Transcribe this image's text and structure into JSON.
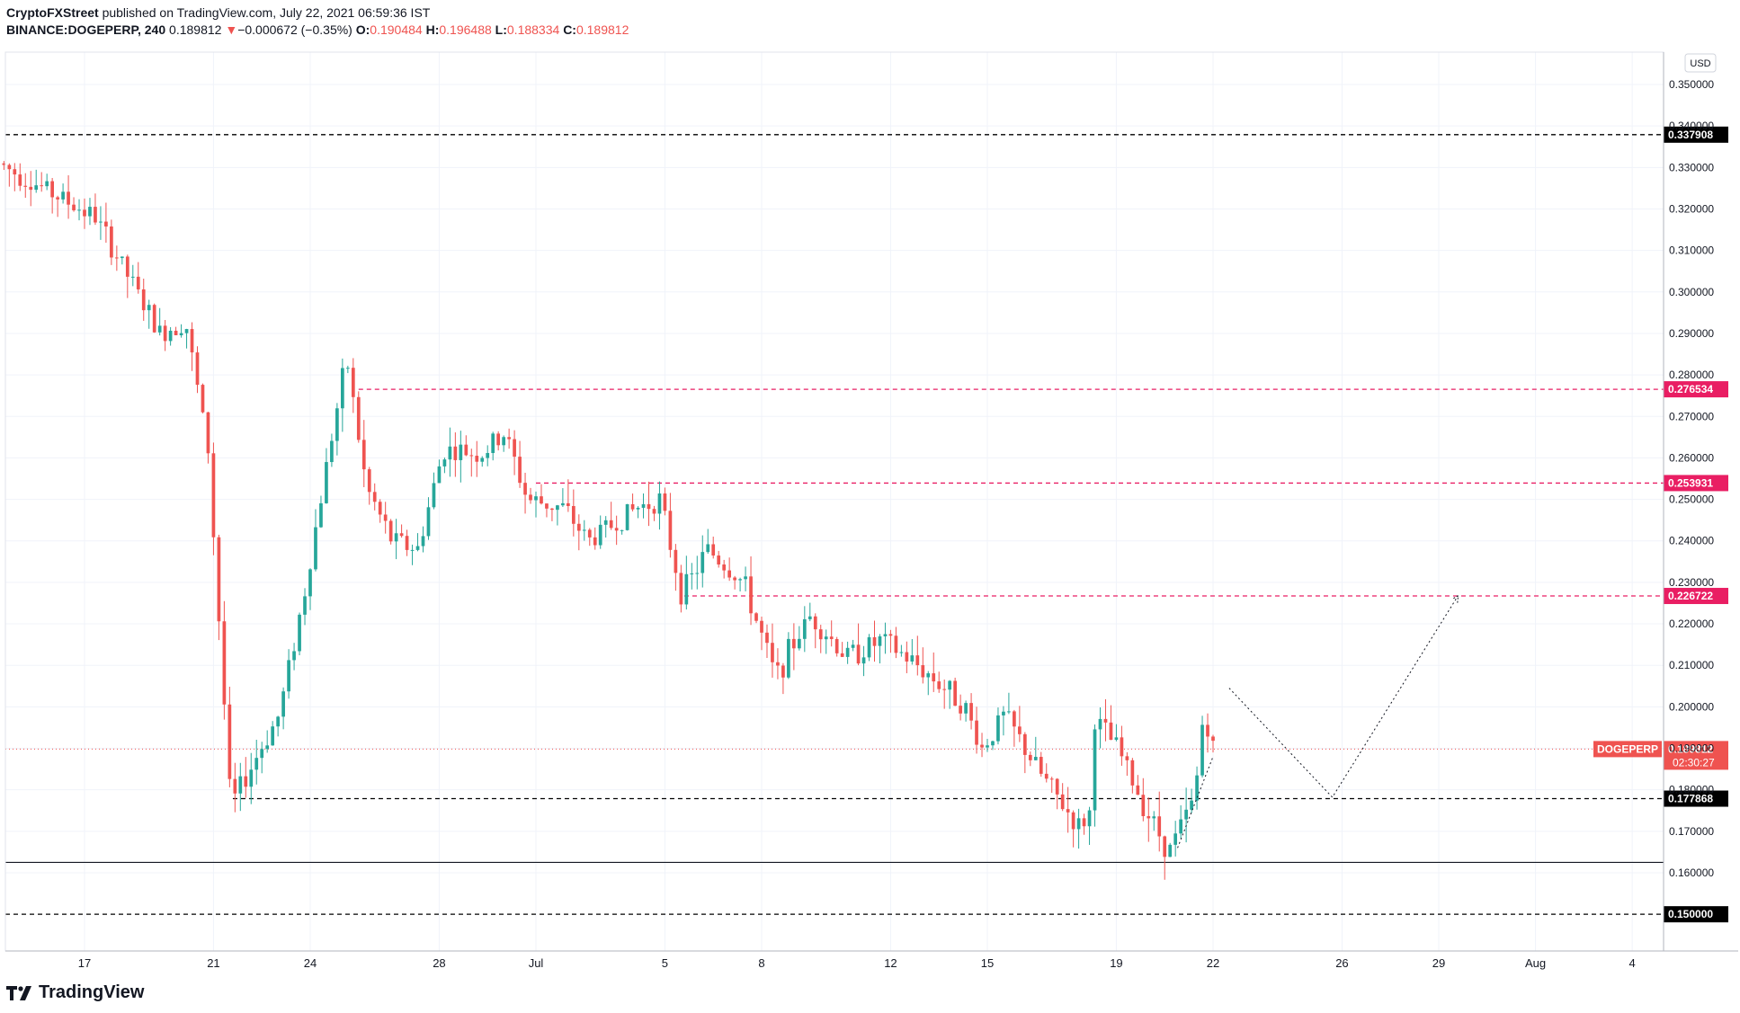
{
  "header": {
    "publisher": "CryptoFXStreet",
    "published_text": "published on TradingView.com, July 22, 2021 06:59:36 IST",
    "symbol": "BINANCE:DOGEPERP, 240",
    "last": "0.189812",
    "change": "−0.000672 (−0.35%)",
    "o_label": "O:",
    "o": "0.190484",
    "h_label": "H:",
    "h": "0.196488",
    "l_label": "L:",
    "l": "0.188334",
    "c_label": "C:",
    "c": "0.189812"
  },
  "brand": "TradingView",
  "colors": {
    "up": "#26a69a",
    "down": "#ef5350",
    "resistance": "#e91e63",
    "support": "#000000",
    "price_line": "#ef5350"
  },
  "chart_data": {
    "type": "candlestick",
    "currency": "USD",
    "ylim": [
      0.155,
      0.357
    ],
    "y_ticks": [
      "0.350000",
      "0.340000",
      "0.330000",
      "0.320000",
      "0.310000",
      "0.300000",
      "0.290000",
      "0.280000",
      "0.270000",
      "0.260000",
      "0.250000",
      "0.240000",
      "0.230000",
      "0.220000",
      "0.210000",
      "0.200000",
      "0.190000",
      "0.180000",
      "0.170000",
      "0.160000"
    ],
    "x_ticks": [
      {
        "label": "17",
        "day": 17
      },
      {
        "label": "21",
        "day": 21
      },
      {
        "label": "24",
        "day": 24
      },
      {
        "label": "28",
        "day": 28
      },
      {
        "label": "Jul",
        "day": 31
      },
      {
        "label": "5",
        "day": 35
      },
      {
        "label": "8",
        "day": 38
      },
      {
        "label": "12",
        "day": 42
      },
      {
        "label": "15",
        "day": 45
      },
      {
        "label": "19",
        "day": 49
      },
      {
        "label": "22",
        "day": 52
      },
      {
        "label": "26",
        "day": 56
      },
      {
        "label": "29",
        "day": 59
      },
      {
        "label": "Aug",
        "day": 62
      },
      {
        "label": "4",
        "day": 65
      }
    ],
    "levels": [
      {
        "value": 0.337908,
        "label": "0.337908",
        "style": "support"
      },
      {
        "value": 0.276534,
        "label": "0.276534",
        "style": "resistance"
      },
      {
        "value": 0.253931,
        "label": "0.253931",
        "style": "resistance"
      },
      {
        "value": 0.226722,
        "label": "0.226722",
        "style": "resistance"
      },
      {
        "value": 0.177868,
        "label": "0.177868",
        "style": "support"
      },
      {
        "value": 0.15,
        "label": "0.150000",
        "style": "support"
      }
    ],
    "solid_level": 0.1625,
    "current_price": {
      "symbol": "DOGEPERP",
      "value": 0.189812,
      "label": "0.189812",
      "countdown": "02:30:27"
    },
    "projection": [
      {
        "day": 52.5,
        "price": 0.2045
      },
      {
        "day": 55.7,
        "price": 0.1782
      },
      {
        "day": 59.6,
        "price": 0.2268
      }
    ],
    "anchors": [
      {
        "day": 14.5,
        "price": 0.331
      },
      {
        "day": 17.5,
        "price": 0.318
      },
      {
        "day": 19.5,
        "price": 0.29
      },
      {
        "day": 20.3,
        "price": 0.293
      },
      {
        "day": 21.0,
        "price": 0.262
      },
      {
        "day": 21.7,
        "price": 0.176
      },
      {
        "day": 22.5,
        "price": 0.188
      },
      {
        "day": 23.2,
        "price": 0.198
      },
      {
        "day": 24.0,
        "price": 0.228
      },
      {
        "day": 24.8,
        "price": 0.264
      },
      {
        "day": 25.3,
        "price": 0.284
      },
      {
        "day": 25.9,
        "price": 0.253
      },
      {
        "day": 26.7,
        "price": 0.24
      },
      {
        "day": 27.5,
        "price": 0.238
      },
      {
        "day": 28.3,
        "price": 0.262
      },
      {
        "day": 29.5,
        "price": 0.261
      },
      {
        "day": 30.2,
        "price": 0.266
      },
      {
        "day": 30.9,
        "price": 0.25
      },
      {
        "day": 32.0,
        "price": 0.248
      },
      {
        "day": 32.8,
        "price": 0.24
      },
      {
        "day": 34.3,
        "price": 0.248
      },
      {
        "day": 35.0,
        "price": 0.25
      },
      {
        "day": 35.7,
        "price": 0.227
      },
      {
        "day": 36.5,
        "price": 0.238
      },
      {
        "day": 37.6,
        "price": 0.23
      },
      {
        "day": 38.6,
        "price": 0.207
      },
      {
        "day": 39.2,
        "price": 0.216
      },
      {
        "day": 39.7,
        "price": 0.222
      },
      {
        "day": 40.8,
        "price": 0.212
      },
      {
        "day": 41.9,
        "price": 0.216
      },
      {
        "day": 43.0,
        "price": 0.21
      },
      {
        "day": 44.4,
        "price": 0.201
      },
      {
        "day": 45.0,
        "price": 0.19
      },
      {
        "day": 45.7,
        "price": 0.198
      },
      {
        "day": 46.8,
        "price": 0.184
      },
      {
        "day": 48.0,
        "price": 0.171
      },
      {
        "day": 48.4,
        "price": 0.175
      },
      {
        "day": 48.5,
        "price": 0.197
      },
      {
        "day": 49.2,
        "price": 0.19
      },
      {
        "day": 50.1,
        "price": 0.175
      },
      {
        "day": 50.8,
        "price": 0.165
      },
      {
        "day": 51.6,
        "price": 0.178
      },
      {
        "day": 51.9,
        "price": 0.201
      },
      {
        "day": 52.1,
        "price": 0.1898
      }
    ]
  }
}
